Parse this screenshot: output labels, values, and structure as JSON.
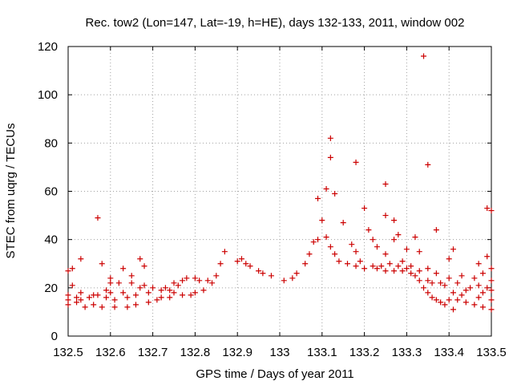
{
  "chart_data": {
    "type": "scatter",
    "title": "Rec. tow2 (Lon=147, Lat=-19, h=HE), days 132-133, 2011, window 002",
    "xlabel": "GPS time / Days of year 2011",
    "ylabel": "STEC from uqrg / TECUs",
    "xlim": [
      132.5,
      133.5
    ],
    "ylim": [
      0,
      120
    ],
    "x_ticks": [
      132.5,
      132.6,
      132.7,
      132.8,
      132.9,
      133,
      133.1,
      133.2,
      133.3,
      133.4,
      133.5
    ],
    "x_tick_labels": [
      "132.5",
      "132.6",
      "132.7",
      "132.8",
      "132.9",
      "133",
      "133.1",
      "133.2",
      "133.3",
      "133.4",
      "133.5"
    ],
    "y_ticks": [
      0,
      20,
      40,
      60,
      80,
      100,
      120
    ],
    "y_tick_labels": [
      "0",
      "20",
      "40",
      "60",
      "80",
      "100",
      "120"
    ],
    "grid": true,
    "marker": "+",
    "color": "#cc0000",
    "points": [
      [
        132.5,
        27
      ],
      [
        132.5,
        17
      ],
      [
        132.5,
        15
      ],
      [
        132.5,
        13
      ],
      [
        132.51,
        21
      ],
      [
        132.51,
        28
      ],
      [
        132.52,
        16
      ],
      [
        132.52,
        14
      ],
      [
        132.53,
        32
      ],
      [
        132.53,
        18
      ],
      [
        132.53,
        15
      ],
      [
        132.54,
        12
      ],
      [
        132.55,
        16
      ],
      [
        132.56,
        17
      ],
      [
        132.56,
        13
      ],
      [
        132.57,
        49
      ],
      [
        132.57,
        17
      ],
      [
        132.58,
        12
      ],
      [
        132.58,
        30
      ],
      [
        132.59,
        19
      ],
      [
        132.59,
        16
      ],
      [
        132.6,
        24
      ],
      [
        132.6,
        22
      ],
      [
        132.6,
        18
      ],
      [
        132.61,
        12
      ],
      [
        132.61,
        15
      ],
      [
        132.62,
        22
      ],
      [
        132.63,
        28
      ],
      [
        132.63,
        18
      ],
      [
        132.64,
        12
      ],
      [
        132.64,
        16
      ],
      [
        132.65,
        25
      ],
      [
        132.65,
        22
      ],
      [
        132.66,
        13
      ],
      [
        132.66,
        17
      ],
      [
        132.67,
        32
      ],
      [
        132.67,
        20
      ],
      [
        132.68,
        29
      ],
      [
        132.68,
        21
      ],
      [
        132.69,
        14
      ],
      [
        132.69,
        18
      ],
      [
        132.7,
        20
      ],
      [
        132.71,
        15
      ],
      [
        132.72,
        19
      ],
      [
        132.72,
        16
      ],
      [
        132.73,
        20
      ],
      [
        132.74,
        16
      ],
      [
        132.74,
        19
      ],
      [
        132.75,
        22
      ],
      [
        132.75,
        18
      ],
      [
        132.76,
        21
      ],
      [
        132.77,
        17
      ],
      [
        132.77,
        23
      ],
      [
        132.78,
        24
      ],
      [
        132.79,
        17
      ],
      [
        132.8,
        24
      ],
      [
        132.8,
        18
      ],
      [
        132.81,
        23
      ],
      [
        132.82,
        19
      ],
      [
        132.83,
        23
      ],
      [
        132.84,
        22
      ],
      [
        132.85,
        25
      ],
      [
        132.86,
        30
      ],
      [
        132.87,
        35
      ],
      [
        132.9,
        31
      ],
      [
        132.91,
        32
      ],
      [
        132.92,
        30
      ],
      [
        132.93,
        29
      ],
      [
        132.95,
        27
      ],
      [
        132.96,
        26
      ],
      [
        132.98,
        25
      ],
      [
        133.01,
        23
      ],
      [
        133.03,
        24
      ],
      [
        133.04,
        26
      ],
      [
        133.06,
        30
      ],
      [
        133.07,
        34
      ],
      [
        133.08,
        39
      ],
      [
        133.09,
        40
      ],
      [
        133.09,
        57
      ],
      [
        133.1,
        48
      ],
      [
        133.11,
        41
      ],
      [
        133.11,
        61
      ],
      [
        133.12,
        37
      ],
      [
        133.12,
        74
      ],
      [
        133.12,
        82
      ],
      [
        133.13,
        34
      ],
      [
        133.13,
        59
      ],
      [
        133.14,
        31
      ],
      [
        133.15,
        47
      ],
      [
        133.16,
        30
      ],
      [
        133.17,
        38
      ],
      [
        133.18,
        29
      ],
      [
        133.18,
        35
      ],
      [
        133.18,
        72
      ],
      [
        133.19,
        31
      ],
      [
        133.2,
        28
      ],
      [
        133.2,
        53
      ],
      [
        133.21,
        44
      ],
      [
        133.22,
        29
      ],
      [
        133.22,
        40
      ],
      [
        133.23,
        28
      ],
      [
        133.23,
        37
      ],
      [
        133.24,
        29
      ],
      [
        133.25,
        27
      ],
      [
        133.25,
        34
      ],
      [
        133.25,
        50
      ],
      [
        133.25,
        63
      ],
      [
        133.26,
        30
      ],
      [
        133.27,
        27
      ],
      [
        133.27,
        40
      ],
      [
        133.27,
        48
      ],
      [
        133.28,
        29
      ],
      [
        133.28,
        42
      ],
      [
        133.29,
        27
      ],
      [
        133.29,
        31
      ],
      [
        133.3,
        28
      ],
      [
        133.3,
        36
      ],
      [
        133.31,
        26
      ],
      [
        133.31,
        29
      ],
      [
        133.32,
        25
      ],
      [
        133.32,
        41
      ],
      [
        133.33,
        23
      ],
      [
        133.33,
        27
      ],
      [
        133.33,
        35
      ],
      [
        133.34,
        20
      ],
      [
        133.34,
        116
      ],
      [
        133.35,
        18
      ],
      [
        133.35,
        23
      ],
      [
        133.35,
        28
      ],
      [
        133.35,
        71
      ],
      [
        133.36,
        16
      ],
      [
        133.36,
        22
      ],
      [
        133.37,
        15
      ],
      [
        133.37,
        26
      ],
      [
        133.37,
        44
      ],
      [
        133.38,
        14
      ],
      [
        133.38,
        22
      ],
      [
        133.39,
        13
      ],
      [
        133.39,
        21
      ],
      [
        133.4,
        15
      ],
      [
        133.4,
        24
      ],
      [
        133.4,
        32
      ],
      [
        133.41,
        11
      ],
      [
        133.41,
        18
      ],
      [
        133.41,
        36
      ],
      [
        133.42,
        15
      ],
      [
        133.42,
        22
      ],
      [
        133.43,
        17
      ],
      [
        133.43,
        25
      ],
      [
        133.44,
        14
      ],
      [
        133.44,
        19
      ],
      [
        133.45,
        20
      ],
      [
        133.46,
        13
      ],
      [
        133.46,
        24
      ],
      [
        133.47,
        16
      ],
      [
        133.47,
        21
      ],
      [
        133.47,
        30
      ],
      [
        133.48,
        12
      ],
      [
        133.48,
        18
      ],
      [
        133.48,
        26
      ],
      [
        133.49,
        20
      ],
      [
        133.49,
        33
      ],
      [
        133.49,
        53
      ],
      [
        133.5,
        11
      ],
      [
        133.5,
        15
      ],
      [
        133.5,
        19
      ],
      [
        133.5,
        23
      ],
      [
        133.5,
        28
      ],
      [
        133.5,
        52
      ]
    ]
  }
}
